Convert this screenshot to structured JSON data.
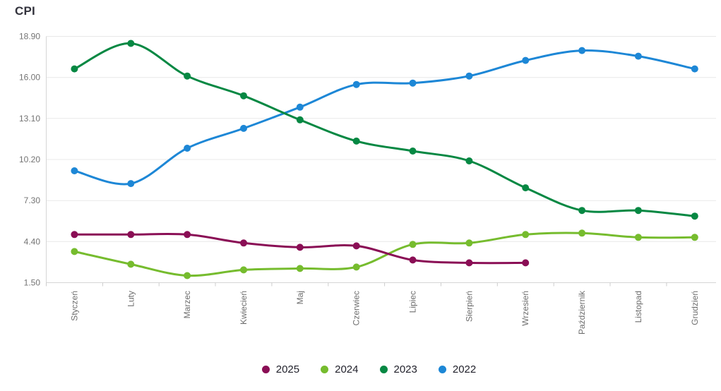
{
  "page": {
    "title": "CPI"
  },
  "chart_data": {
    "type": "line",
    "title": "CPI",
    "categories": [
      "Styczeń",
      "Luty",
      "Marzec",
      "Kwiecień",
      "Maj",
      "Czerwiec",
      "Lipiec",
      "Sierpień",
      "Wrzesień",
      "Październik",
      "Listopad",
      "Grudzień"
    ],
    "series": [
      {
        "name": "2025",
        "color": "#8a0e55",
        "values": [
          4.9,
          4.9,
          4.9,
          4.3,
          4.0,
          4.1,
          3.1,
          2.9,
          2.9,
          null,
          null,
          null
        ]
      },
      {
        "name": "2024",
        "color": "#76bc2e",
        "values": [
          3.7,
          2.8,
          2.0,
          2.4,
          2.5,
          2.6,
          4.2,
          4.3,
          4.9,
          5.0,
          4.7,
          4.7
        ]
      },
      {
        "name": "2023",
        "color": "#068843",
        "values": [
          16.6,
          18.4,
          16.1,
          14.7,
          13.0,
          11.5,
          10.8,
          10.1,
          8.2,
          6.6,
          6.6,
          6.2
        ]
      },
      {
        "name": "2022",
        "color": "#1d87d6",
        "values": [
          9.4,
          8.5,
          11.0,
          12.4,
          13.9,
          15.5,
          15.6,
          16.1,
          17.2,
          17.9,
          17.5,
          16.6
        ]
      }
    ],
    "y_ticks": [
      18.9,
      16.0,
      13.1,
      10.2,
      7.3,
      4.4,
      1.5
    ],
    "y_tick_labels": [
      "18.90",
      "16.00",
      "13.10",
      "10.20",
      "7.30",
      "4.40",
      "1.50"
    ],
    "ylim": [
      1.5,
      18.9
    ],
    "xlabel": "",
    "ylabel": "",
    "grid": true,
    "legend_position": "bottom",
    "legend": [
      "2025",
      "2024",
      "2023",
      "2022"
    ],
    "colors": {
      "grid": "#e8e8e8",
      "axis": "#d6d6d6",
      "tick": "#cccccc",
      "y_label_text": "#737373",
      "x_label_text": "#6e6e6e",
      "legend_text": "#22222c",
      "title_text": "#33333d"
    }
  }
}
